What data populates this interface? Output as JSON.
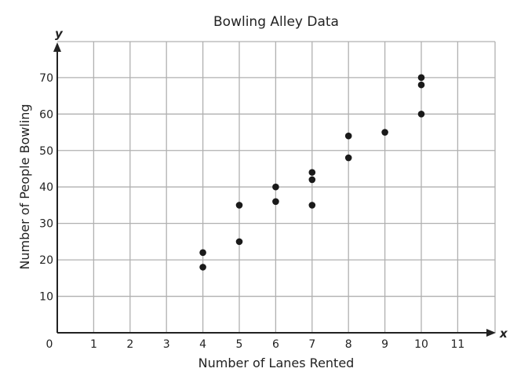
{
  "chart_data": {
    "type": "scatter",
    "title": "Bowling Alley Data",
    "xlabel": "Number of Lanes Rented",
    "ylabel": "Number of People Bowling",
    "x_axis_var": "x",
    "y_axis_var": "y",
    "origin_label": "0",
    "xlim": [
      0,
      12
    ],
    "ylim": [
      0,
      80
    ],
    "x_ticks": [
      "1",
      "2",
      "3",
      "4",
      "5",
      "6",
      "7",
      "8",
      "9",
      "10",
      "11"
    ],
    "y_ticks": [
      "10",
      "20",
      "30",
      "40",
      "50",
      "60",
      "70"
    ],
    "grid": true,
    "points": [
      {
        "x": 4,
        "y": 22
      },
      {
        "x": 4,
        "y": 18
      },
      {
        "x": 5,
        "y": 35
      },
      {
        "x": 5,
        "y": 25
      },
      {
        "x": 6,
        "y": 40
      },
      {
        "x": 6,
        "y": 36
      },
      {
        "x": 7,
        "y": 44
      },
      {
        "x": 7,
        "y": 42
      },
      {
        "x": 7,
        "y": 35
      },
      {
        "x": 8,
        "y": 54
      },
      {
        "x": 8,
        "y": 48
      },
      {
        "x": 9,
        "y": 55
      },
      {
        "x": 10,
        "y": 70
      },
      {
        "x": 10,
        "y": 68
      },
      {
        "x": 10,
        "y": 60
      }
    ],
    "colors": {
      "grid": "#b0b0b0",
      "axis": "#222222",
      "point": "#1a1a1a"
    }
  }
}
